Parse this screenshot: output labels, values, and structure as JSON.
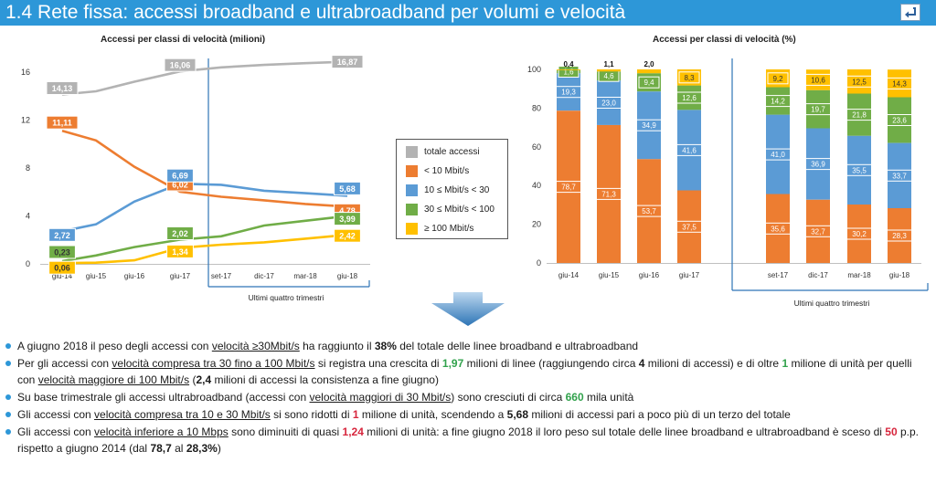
{
  "header": {
    "title": "1.4 Rete fissa: accessi broadband e ultrabroadband per volumi e velocità"
  },
  "colors": {
    "header_bg": "#2d97d8",
    "totale": "#b3b3b3",
    "lt10": "#ed7d31",
    "b10_30": "#5b9bd5",
    "b30_100": "#70ad47",
    "ge100": "#ffc000",
    "divider": "#2e75b6"
  },
  "chart_data": [
    {
      "type": "line",
      "title": "Accessi per classi di velocità (milioni)",
      "categories": [
        "giu-14",
        "giu-15",
        "giu-16",
        "giu-17",
        "set-17",
        "dic-17",
        "mar-18",
        "giu-18"
      ],
      "ylim": [
        0,
        16
      ],
      "yticks": [
        0,
        4,
        8,
        12,
        16
      ],
      "grid": false,
      "legend_position": "right",
      "annotation": "Ultimi quattro trimestri",
      "series": [
        {
          "name": "totale accessi",
          "key": "totale",
          "values": [
            14.13,
            14.4,
            15.2,
            16.06,
            16.4,
            16.6,
            16.75,
            16.87
          ],
          "labels": {
            "0": "14,13",
            "3": "16,06",
            "7": "16,87"
          }
        },
        {
          "name": "< 10 Mbit/s",
          "key": "lt10",
          "values": [
            11.11,
            10.3,
            8.1,
            6.02,
            5.6,
            5.3,
            5.0,
            4.78
          ],
          "labels": {
            "0": "11,11",
            "3": "6,02",
            "7": "4,78"
          }
        },
        {
          "name": "10 ≤ Mbit/s  < 30",
          "key": "b10_30",
          "values": [
            2.72,
            3.3,
            5.2,
            6.69,
            6.6,
            6.1,
            5.9,
            5.68
          ],
          "labels": {
            "0": "2,72",
            "3": "6,69",
            "7": "5,68"
          }
        },
        {
          "name": "30 ≤ Mbit/s < 100",
          "key": "b30_100",
          "values": [
            0.23,
            0.7,
            1.4,
            2.02,
            2.3,
            3.2,
            3.6,
            3.99
          ],
          "labels": {
            "0": "0,23",
            "3": "2,02",
            "7": "3,99"
          }
        },
        {
          "name": "≥ 100 Mbit/s",
          "key": "ge100",
          "values": [
            0.06,
            0.1,
            0.3,
            1.34,
            1.6,
            1.8,
            2.1,
            2.42
          ],
          "labels": {
            "0": "0,06",
            "3": "1,34",
            "7": "2,42"
          }
        }
      ]
    },
    {
      "type": "bar",
      "stacked": true,
      "title": "Accessi per classi di velocità (%)",
      "categories": [
        "giu-14",
        "giu-15",
        "giu-16",
        "giu-17",
        "set-17",
        "dic-17",
        "mar-18",
        "giu-18"
      ],
      "ylim": [
        0,
        100
      ],
      "yticks": [
        0,
        20,
        40,
        60,
        80,
        100
      ],
      "annotation": "Ultimi quattro trimestri",
      "series": [
        {
          "key": "lt10",
          "values": [
            78.7,
            71.3,
            53.7,
            37.5,
            35.6,
            32.7,
            30.2,
            28.3
          ],
          "labels": [
            "78,7",
            "71,3",
            "53,7",
            "37,5",
            "35,6",
            "32,7",
            "30,2",
            "28,3"
          ]
        },
        {
          "key": "b10_30",
          "values": [
            19.3,
            23.0,
            34.9,
            41.6,
            41.0,
            36.9,
            35.5,
            33.7
          ],
          "labels": [
            "19,3",
            "23,0",
            "34,9",
            "41,6",
            "41,0",
            "36,9",
            "35,5",
            "33,7"
          ]
        },
        {
          "key": "b30_100",
          "values": [
            1.6,
            4.6,
            9.4,
            12.6,
            14.2,
            19.7,
            21.8,
            23.6
          ],
          "labels": [
            "1,6",
            "4,6",
            "9,4",
            "12,6",
            "14,2",
            "19,7",
            "21,8",
            "23,6"
          ]
        },
        {
          "key": "ge100",
          "values": [
            0.4,
            1.1,
            2.0,
            8.3,
            9.2,
            10.6,
            12.5,
            14.3
          ],
          "labels": [
            "0,4",
            "1,1",
            "2,0",
            "8,3",
            "9,2",
            "10,6",
            "12,5",
            "14,3"
          ]
        }
      ]
    }
  ],
  "bullets": [
    {
      "parts": [
        [
          "A giugno 2018 il peso degli accessi con ",
          ""
        ],
        [
          "velocità ≥30Mbit/s",
          "u"
        ],
        [
          " ha raggiunto il ",
          ""
        ],
        [
          "38%",
          "b"
        ],
        [
          " del totale delle linee broadband e ultrabroadband",
          ""
        ]
      ]
    },
    {
      "parts": [
        [
          "Per gli accessi con ",
          ""
        ],
        [
          "velocità compresa tra 30 fino a 100 Mbit/s",
          "u"
        ],
        [
          " si registra una crescita di ",
          ""
        ],
        [
          "1,97",
          "g"
        ],
        [
          " milioni di linee (raggiungendo circa ",
          ""
        ],
        [
          "4",
          "b"
        ],
        [
          " milioni di accessi) e di oltre ",
          ""
        ],
        [
          "1",
          "g"
        ],
        [
          " milione di unità per quelli con ",
          ""
        ],
        [
          "velocità maggiore di 100 Mbit/s",
          "u"
        ],
        [
          " (",
          ""
        ],
        [
          "2,4",
          "b"
        ],
        [
          " milioni di accessi la consistenza a fine giugno)",
          ""
        ]
      ]
    },
    {
      "parts": [
        [
          "Su base trimestrale gli accessi ultrabroadband (accessi con ",
          ""
        ],
        [
          "velocità maggiori di 30 Mbit/s",
          "u"
        ],
        [
          ") sono cresciuti di circa ",
          ""
        ],
        [
          "660",
          "g"
        ],
        [
          " mila unità",
          ""
        ]
      ]
    },
    {
      "parts": [
        [
          "Gli accessi con ",
          ""
        ],
        [
          "velocità compresa tra 10 e 30 Mbit/s",
          "u"
        ],
        [
          " si sono ridotti di ",
          ""
        ],
        [
          "1",
          "r"
        ],
        [
          " milione di unità, scendendo a ",
          ""
        ],
        [
          "5,68",
          "b"
        ],
        [
          " milioni di accessi pari a poco più di un terzo del totale",
          ""
        ]
      ]
    },
    {
      "parts": [
        [
          "Gli accessi con ",
          ""
        ],
        [
          "velocità inferiore a 10 Mbps",
          "u"
        ],
        [
          " sono diminuiti di quasi ",
          ""
        ],
        [
          "1,24",
          "r"
        ],
        [
          " milioni di unità: a fine giugno 2018 il loro peso sul totale delle linee broadband e ultrabroadband è sceso di ",
          ""
        ],
        [
          "50",
          "r"
        ],
        [
          " p.p. rispetto a giugno 2014 (dal ",
          ""
        ],
        [
          "78,7",
          "b"
        ],
        [
          " al ",
          ""
        ],
        [
          "28,3%",
          "b"
        ],
        [
          ")",
          ""
        ]
      ]
    }
  ]
}
